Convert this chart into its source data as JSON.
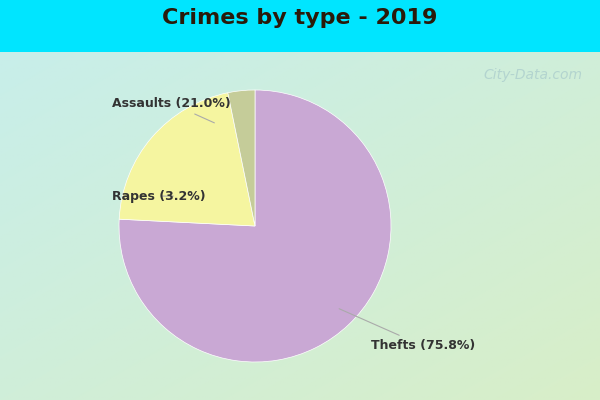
{
  "title": "Crimes by type - 2019",
  "slices": [
    {
      "label": "Thefts (75.8%)",
      "value": 75.8,
      "color": "#c9a8d4"
    },
    {
      "label": "Assaults (21.0%)",
      "value": 21.0,
      "color": "#f5f5a0"
    },
    {
      "label": "Rapes (3.2%)",
      "value": 3.2,
      "color": "#c5cc99"
    }
  ],
  "title_fontsize": 16,
  "title_fontweight": "bold",
  "bg_top_color": "#00e5ff",
  "label_fontsize": 9,
  "watermark_text": "City-Data.com",
  "watermark_fontsize": 10,
  "arrow_color": "#aaaaaa",
  "label_color": "#333333"
}
